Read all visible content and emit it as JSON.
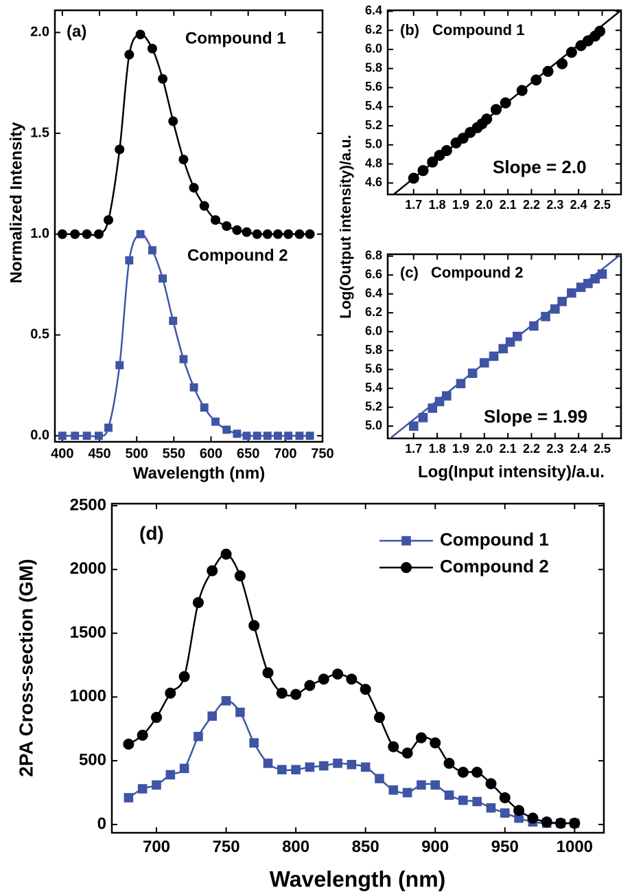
{
  "chart_data": [
    {
      "type": "line",
      "panel_label": "(a)",
      "smooth": true,
      "xlabel": "Wavelength (nm)",
      "ylabel": "Normalized Intensity",
      "xlim": [
        390,
        750
      ],
      "ylim": [
        -0.03,
        2.11
      ],
      "xticks": [
        400,
        450,
        500,
        550,
        600,
        650,
        700,
        750
      ],
      "yticks": [
        {
          "value": 0,
          "label": "0.0"
        },
        0.5,
        {
          "value": 1,
          "label": "1.0"
        },
        1.5,
        {
          "value": 2,
          "label": "2.0"
        }
      ],
      "x": [
        400,
        417,
        433,
        449,
        462,
        477,
        490,
        505,
        521,
        535,
        549,
        563,
        577,
        591,
        606,
        621,
        635,
        648,
        662,
        676,
        690,
        704,
        719,
        733
      ],
      "series": [
        {
          "name": "Compound 1",
          "color": "#000000",
          "marker": "circle",
          "values": [
            1.0,
            1.0,
            1.0,
            1.0,
            1.07,
            1.42,
            1.89,
            1.99,
            1.92,
            1.77,
            1.56,
            1.37,
            1.23,
            1.14,
            1.07,
            1.04,
            1.02,
            1.01,
            1.0,
            1.0,
            1.0,
            1.0,
            1.0,
            1.0
          ]
        },
        {
          "name": "Compound 2",
          "color": "#3f54a5",
          "marker": "square",
          "values": [
            0,
            0,
            0,
            0,
            0.04,
            0.35,
            0.87,
            1.0,
            0.92,
            0.78,
            0.57,
            0.38,
            0.24,
            0.14,
            0.07,
            0.03,
            0.01,
            0,
            0,
            0,
            0,
            0,
            0,
            0
          ]
        }
      ]
    },
    {
      "type": "scatter",
      "panel_label": "(b)",
      "annotation": "Slope = 2.0",
      "ylabel": "Log(Output intensity)/a.u.",
      "xlim": [
        1.59,
        2.58
      ],
      "ylim": [
        4.48,
        6.41
      ],
      "xticks": [
        1.7,
        1.8,
        1.9,
        {
          "value": 2,
          "label": "2.0"
        },
        2.1,
        2.2,
        2.3,
        2.4,
        2.5
      ],
      "yticks": [
        4.6,
        4.8,
        {
          "value": 5,
          "label": "5.0"
        },
        5.2,
        5.4,
        5.6,
        5.8,
        {
          "value": 6,
          "label": "6.0"
        },
        6.2,
        6.4
      ],
      "series": [
        {
          "name": "Compound 1",
          "color": "#000000",
          "marker": "circle",
          "x": [
            1.7,
            1.74,
            1.78,
            1.81,
            1.84,
            1.88,
            1.91,
            1.94,
            1.97,
            1.99,
            2.01,
            2.05,
            2.09,
            2.16,
            2.22,
            2.27,
            2.33,
            2.37,
            2.41,
            2.44,
            2.47,
            2.49
          ],
          "values": [
            4.65,
            4.73,
            4.82,
            4.89,
            4.94,
            5.02,
            5.07,
            5.13,
            5.18,
            5.22,
            5.27,
            5.37,
            5.44,
            5.57,
            5.68,
            5.77,
            5.85,
            5.97,
            6.04,
            6.09,
            6.14,
            6.19
          ]
        },
        {
          "color": "#000000",
          "x": [
            1.59,
            2.58
          ],
          "values": [
            4.43,
            6.41
          ]
        }
      ]
    },
    {
      "type": "scatter",
      "panel_label": "(c)",
      "annotation": "Slope = 1.99",
      "xlabel": "Log(Input intensity)/a.u.",
      "xlim": [
        1.59,
        2.58
      ],
      "ylim": [
        4.87,
        6.82
      ],
      "xticks": [
        1.7,
        1.8,
        1.9,
        {
          "value": 2,
          "label": "2.0"
        },
        2.1,
        2.2,
        2.3,
        2.4,
        2.5
      ],
      "yticks": [
        {
          "value": 5,
          "label": "5.0"
        },
        5.2,
        5.4,
        5.6,
        5.8,
        {
          "value": 6,
          "label": "6.0"
        },
        6.2,
        6.4,
        6.6,
        6.8
      ],
      "series": [
        {
          "name": "Compound 2",
          "color": "#3f54a5",
          "marker": "square",
          "x": [
            1.7,
            1.74,
            1.78,
            1.81,
            1.84,
            1.9,
            1.95,
            2.0,
            2.04,
            2.08,
            2.11,
            2.14,
            2.21,
            2.26,
            2.3,
            2.33,
            2.37,
            2.41,
            2.44,
            2.47,
            2.5
          ],
          "values": [
            5.0,
            5.09,
            5.19,
            5.26,
            5.32,
            5.45,
            5.56,
            5.67,
            5.74,
            5.82,
            5.89,
            5.95,
            6.06,
            6.16,
            6.24,
            6.32,
            6.41,
            6.47,
            6.51,
            6.56,
            6.61
          ]
        },
        {
          "color": "#3f54a5",
          "x": [
            1.59,
            2.58
          ],
          "values": [
            4.85,
            6.82
          ]
        }
      ]
    },
    {
      "type": "line",
      "panel_label": "(d)",
      "smooth": true,
      "legend": "upper right",
      "xlabel": "Wavelength (nm)",
      "ylabel": "2PA Cross-section (GM)",
      "xlim": [
        668,
        1021
      ],
      "ylim": [
        -65,
        2516
      ],
      "xticks": [
        700,
        750,
        800,
        850,
        900,
        950,
        1000
      ],
      "yticks": [
        0,
        500,
        1000,
        1500,
        2000,
        2500
      ],
      "x": [
        680,
        690,
        700,
        710,
        720,
        730,
        740,
        750,
        760,
        770,
        780,
        790,
        800,
        810,
        820,
        830,
        840,
        850,
        860,
        870,
        880,
        890,
        900,
        910,
        920,
        930,
        940,
        950,
        960,
        970,
        980,
        990,
        1000
      ],
      "series": [
        {
          "name": "Compound 1",
          "color": "#3f54a5",
          "marker": "square",
          "values": [
            210,
            280,
            310,
            390,
            440,
            690,
            850,
            970,
            880,
            640,
            480,
            430,
            430,
            450,
            460,
            480,
            470,
            450,
            360,
            270,
            250,
            310,
            310,
            230,
            190,
            180,
            130,
            90,
            50,
            20,
            10,
            10,
            10
          ]
        },
        {
          "name": "Compound 2",
          "color": "#000000",
          "marker": "circle",
          "values": [
            630,
            700,
            840,
            1030,
            1160,
            1740,
            1990,
            2120,
            1950,
            1560,
            1190,
            1030,
            1020,
            1090,
            1140,
            1180,
            1140,
            1060,
            840,
            610,
            560,
            680,
            640,
            480,
            410,
            410,
            320,
            210,
            110,
            50,
            20,
            10,
            10
          ]
        }
      ]
    }
  ]
}
